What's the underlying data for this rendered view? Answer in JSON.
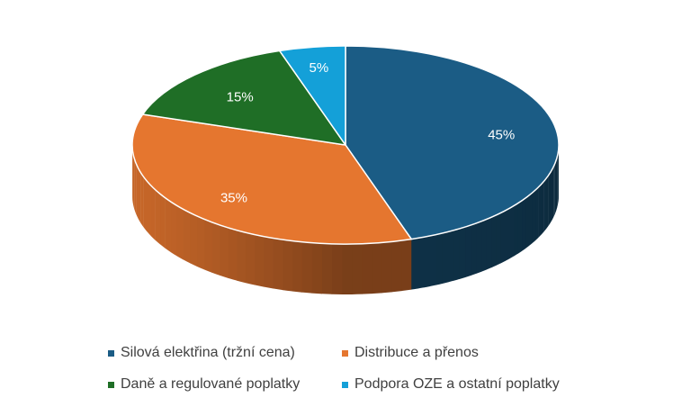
{
  "chart_data": {
    "type": "pie",
    "title": "",
    "categories": [
      "Silová elektřina (tržní cena)",
      "Distribuce a přenos",
      "Daně a regulované poplatky",
      "Podpora OZE a ostatní poplatky"
    ],
    "values": [
      45,
      35,
      15,
      5
    ],
    "labels": [
      "45%",
      "35%",
      "15%",
      "5%"
    ],
    "colors": [
      "#1b5c85",
      "#e5762f",
      "#1f6e26",
      "#14a0d8"
    ],
    "legend_position": "bottom",
    "style": "3d"
  }
}
